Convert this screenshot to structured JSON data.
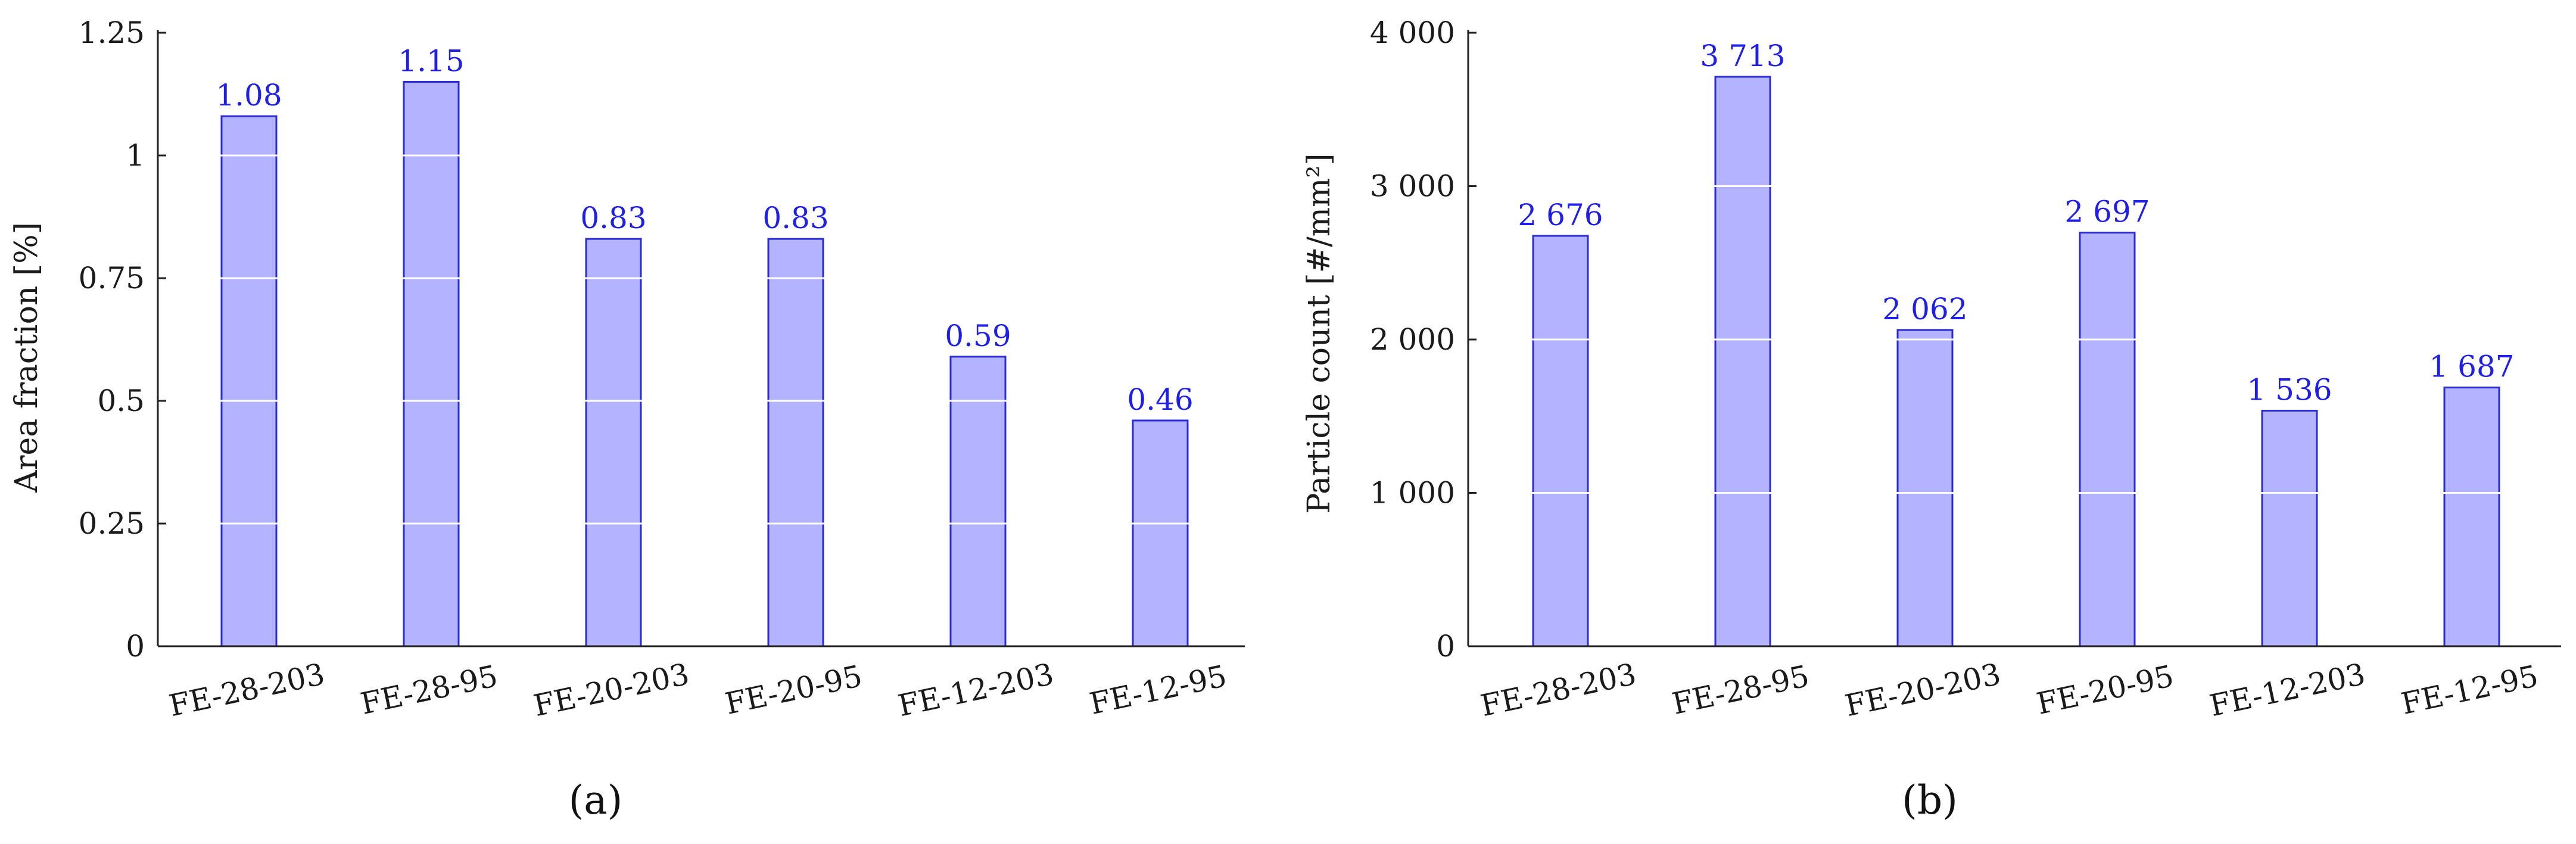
{
  "colors": {
    "bar_fill": "#b3b3ff",
    "bar_stroke": "#2b2bd6",
    "label_color": "#1f1fe6",
    "axis_color": "#222222",
    "grid_color": "#ffffff"
  },
  "chart_data": [
    {
      "type": "bar",
      "panel_label": "(a)",
      "title": "",
      "xlabel": "",
      "ylabel": "Area fraction [%]",
      "categories": [
        "FE-28-203",
        "FE-28-95",
        "FE-20-203",
        "FE-20-95",
        "FE-12-203",
        "FE-12-95"
      ],
      "values": [
        1.08,
        1.15,
        0.83,
        0.83,
        0.59,
        0.46
      ],
      "value_labels": [
        "1.08",
        "1.15",
        "0.83",
        "0.83",
        "0.59",
        "0.46"
      ],
      "ylim": [
        0,
        1.25
      ],
      "yticks": [
        0,
        0.25,
        0.5,
        0.75,
        1,
        1.25
      ],
      "ytick_labels": [
        "0",
        "0.25",
        "0.5",
        "0.75",
        "1",
        "1.25"
      ],
      "grid": true,
      "legend": "none"
    },
    {
      "type": "bar",
      "panel_label": "(b)",
      "title": "",
      "xlabel": "",
      "ylabel": "Particle count [#/mm²]",
      "categories": [
        "FE-28-203",
        "FE-28-95",
        "FE-20-203",
        "FE-20-95",
        "FE-12-203",
        "FE-12-95"
      ],
      "values": [
        2676,
        3713,
        2062,
        2697,
        1536,
        1687
      ],
      "value_labels": [
        "2 676",
        "3 713",
        "2 062",
        "2 697",
        "1 536",
        "1 687"
      ],
      "ylim": [
        0,
        4000
      ],
      "yticks": [
        0,
        1000,
        2000,
        3000,
        4000
      ],
      "ytick_labels": [
        "0",
        "1 000",
        "2 000",
        "3 000",
        "4 000"
      ],
      "grid": true,
      "legend": "none"
    }
  ]
}
